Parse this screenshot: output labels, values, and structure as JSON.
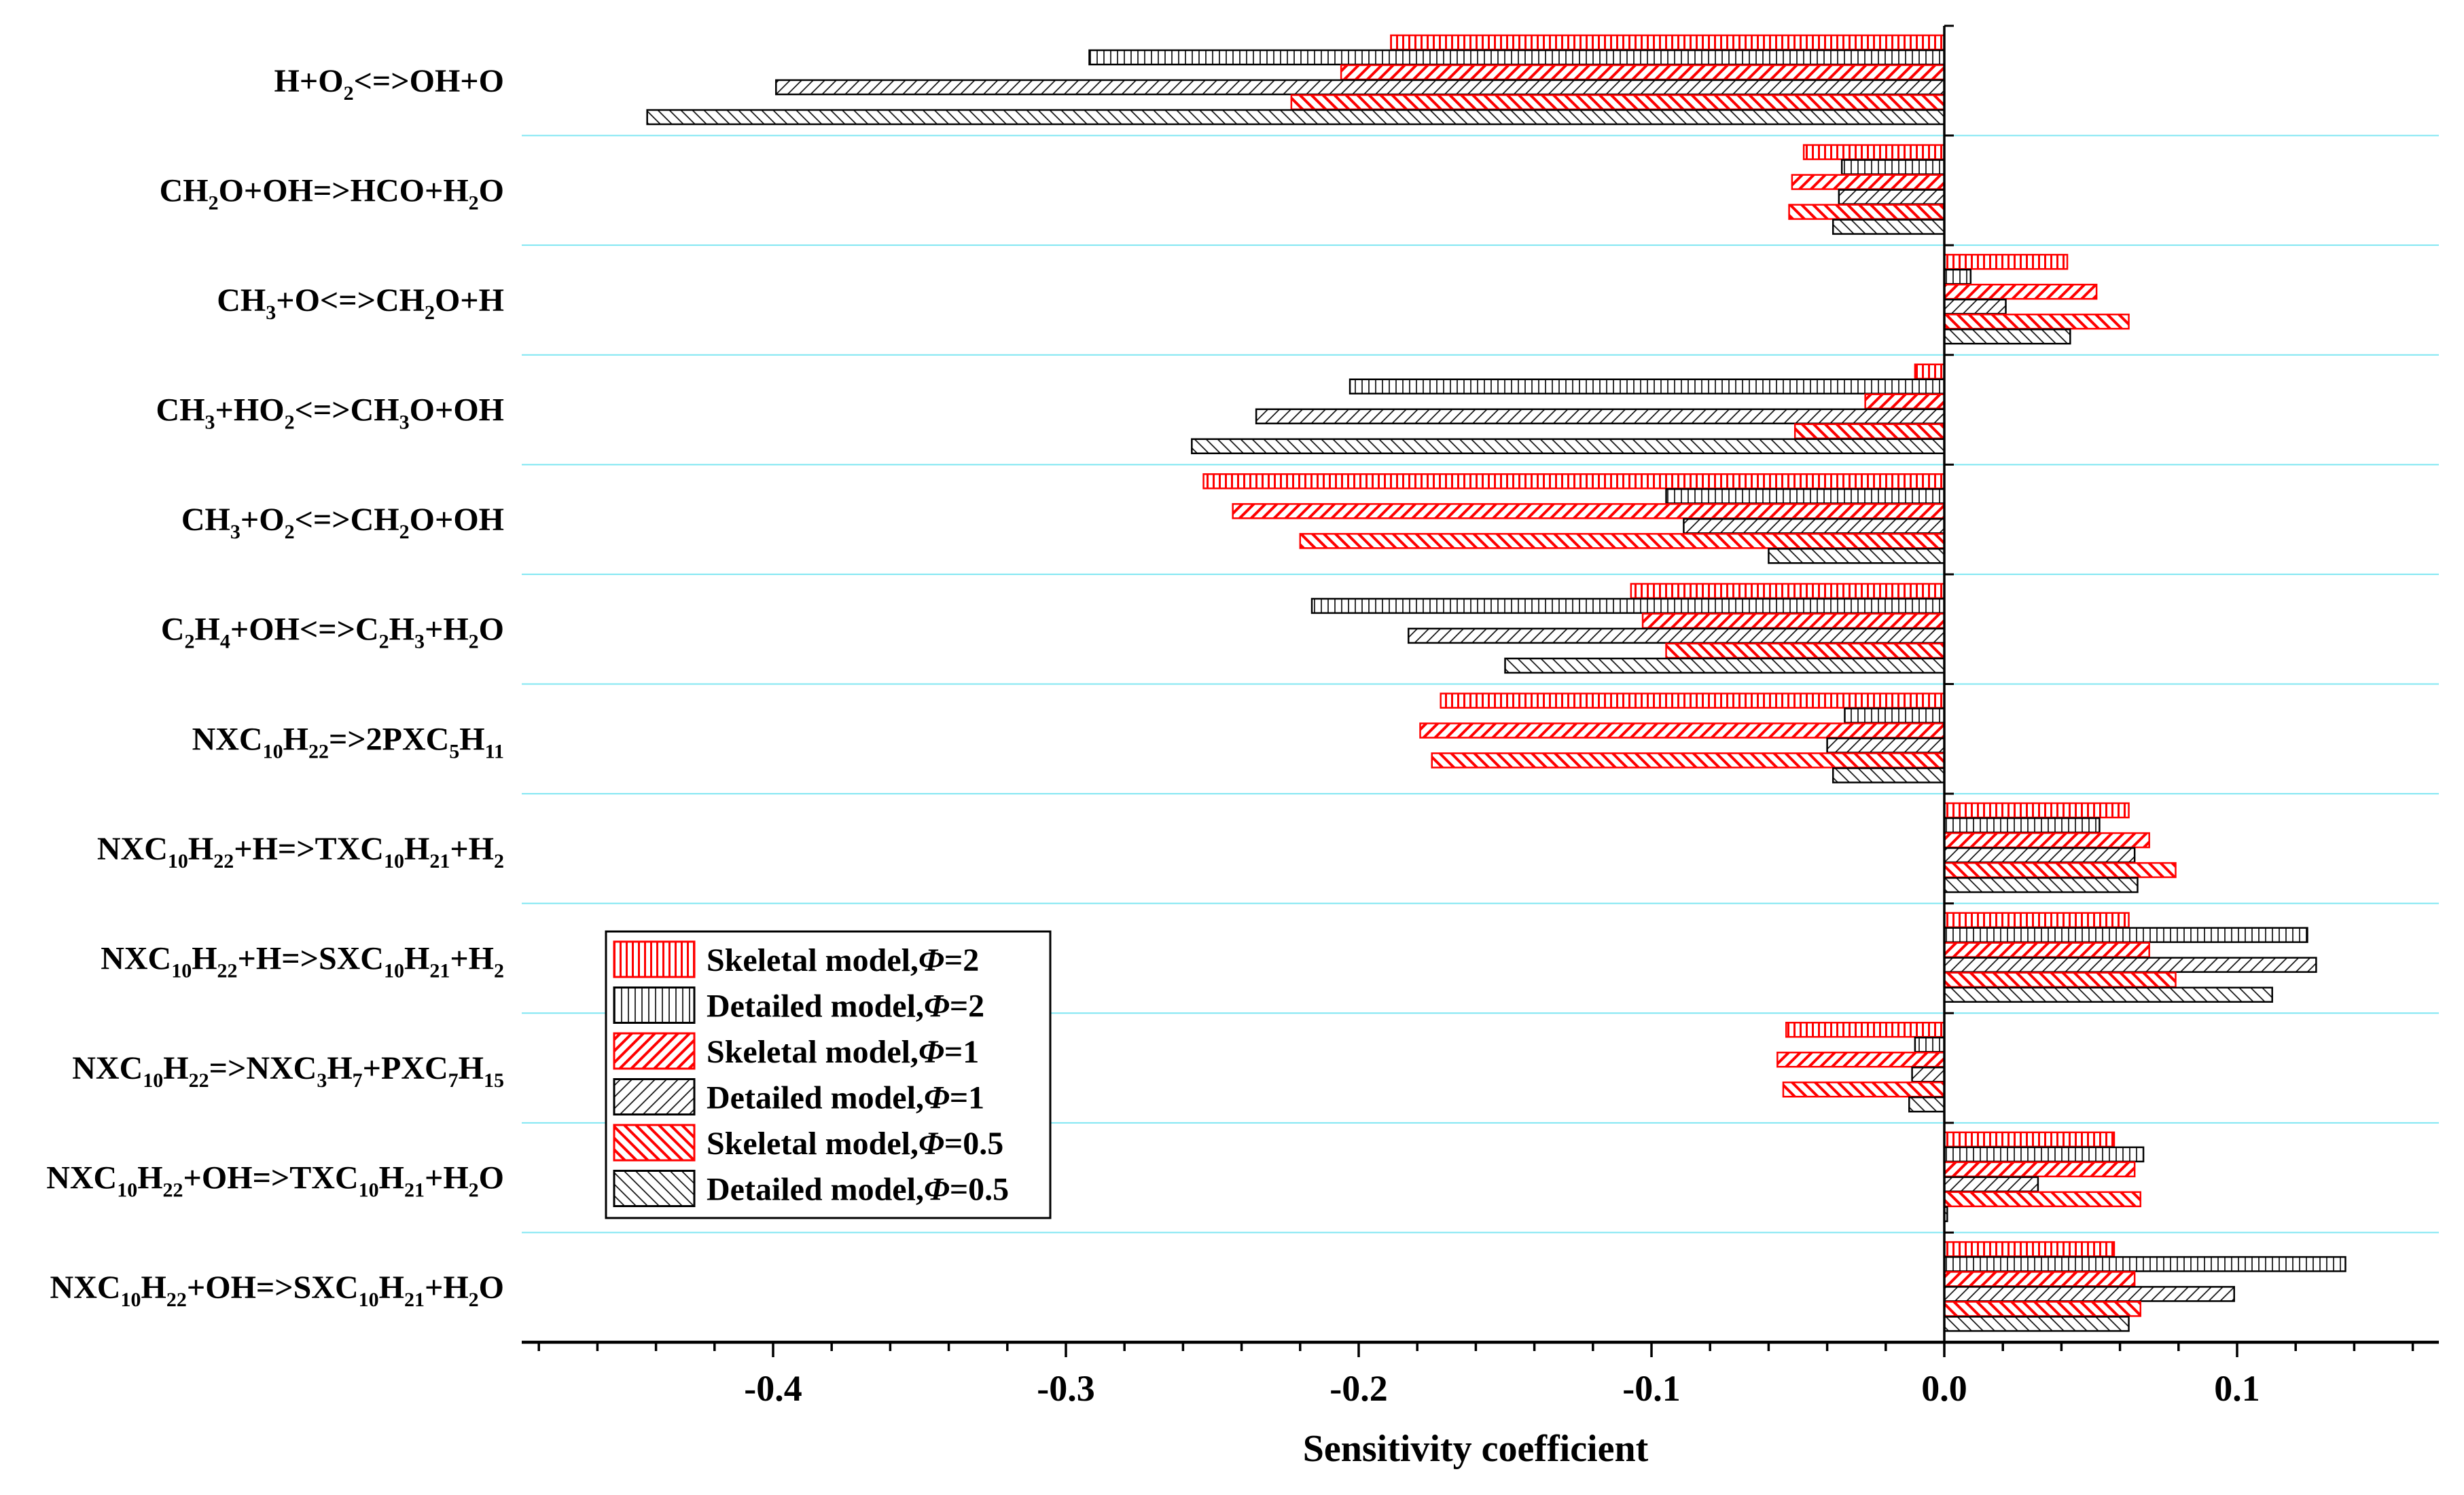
{
  "chart_data": {
    "type": "bar",
    "orientation": "horizontal",
    "xlabel": "Sensitivity coefficient",
    "ylabel": "",
    "xlim": [
      -0.49,
      0.17
    ],
    "xticks": [
      -0.4,
      -0.3,
      -0.2,
      -0.1,
      0.0,
      0.1
    ],
    "xtick_labels": [
      "-0.4",
      "-0.3",
      "-0.2",
      "-0.1",
      "0.0",
      "0.1"
    ],
    "grid": "horizontal separators between reactions",
    "legend_position": "lower-left",
    "categories": [
      [
        {
          "t": "H+O"
        },
        {
          "t": "2",
          "s": 1
        },
        {
          "t": "<=>OH+O"
        }
      ],
      [
        {
          "t": "CH"
        },
        {
          "t": "2",
          "s": 1
        },
        {
          "t": "O+OH=>HCO+H"
        },
        {
          "t": "2",
          "s": 1
        },
        {
          "t": "O"
        }
      ],
      [
        {
          "t": "CH"
        },
        {
          "t": "3",
          "s": 1
        },
        {
          "t": "+O<=>CH"
        },
        {
          "t": "2",
          "s": 1
        },
        {
          "t": "O+H"
        }
      ],
      [
        {
          "t": "CH"
        },
        {
          "t": "3",
          "s": 1
        },
        {
          "t": "+HO"
        },
        {
          "t": "2",
          "s": 1
        },
        {
          "t": "<=>CH"
        },
        {
          "t": "3",
          "s": 1
        },
        {
          "t": "O+OH"
        }
      ],
      [
        {
          "t": "CH"
        },
        {
          "t": "3",
          "s": 1
        },
        {
          "t": "+O"
        },
        {
          "t": "2",
          "s": 1
        },
        {
          "t": "<=>CH"
        },
        {
          "t": "2",
          "s": 1
        },
        {
          "t": "O+OH"
        }
      ],
      [
        {
          "t": "C"
        },
        {
          "t": "2",
          "s": 1
        },
        {
          "t": "H"
        },
        {
          "t": "4",
          "s": 1
        },
        {
          "t": "+OH<=>C"
        },
        {
          "t": "2",
          "s": 1
        },
        {
          "t": "H"
        },
        {
          "t": "3",
          "s": 1
        },
        {
          "t": "+H"
        },
        {
          "t": "2",
          "s": 1
        },
        {
          "t": "O"
        }
      ],
      [
        {
          "t": "NXC"
        },
        {
          "t": "10",
          "s": 1
        },
        {
          "t": "H"
        },
        {
          "t": "22",
          "s": 1
        },
        {
          "t": "=>2PXC"
        },
        {
          "t": "5",
          "s": 1
        },
        {
          "t": "H"
        },
        {
          "t": "11",
          "s": 1
        }
      ],
      [
        {
          "t": "NXC"
        },
        {
          "t": "10",
          "s": 1
        },
        {
          "t": "H"
        },
        {
          "t": "22",
          "s": 1
        },
        {
          "t": "+H=>TXC"
        },
        {
          "t": "10",
          "s": 1
        },
        {
          "t": "H"
        },
        {
          "t": "21",
          "s": 1
        },
        {
          "t": "+H"
        },
        {
          "t": "2",
          "s": 1
        }
      ],
      [
        {
          "t": "NXC"
        },
        {
          "t": "10",
          "s": 1
        },
        {
          "t": "H"
        },
        {
          "t": "22",
          "s": 1
        },
        {
          "t": "+H=>SXC"
        },
        {
          "t": "10",
          "s": 1
        },
        {
          "t": "H"
        },
        {
          "t": "21",
          "s": 1
        },
        {
          "t": "+H"
        },
        {
          "t": "2",
          "s": 1
        }
      ],
      [
        {
          "t": "NXC"
        },
        {
          "t": "10",
          "s": 1
        },
        {
          "t": "H"
        },
        {
          "t": "22",
          "s": 1
        },
        {
          "t": "=>NXC"
        },
        {
          "t": "3",
          "s": 1
        },
        {
          "t": "H"
        },
        {
          "t": "7",
          "s": 1
        },
        {
          "t": "+PXC"
        },
        {
          "t": "7",
          "s": 1
        },
        {
          "t": "H"
        },
        {
          "t": "15",
          "s": 1
        }
      ],
      [
        {
          "t": "NXC"
        },
        {
          "t": "10",
          "s": 1
        },
        {
          "t": "H"
        },
        {
          "t": "22",
          "s": 1
        },
        {
          "t": "+OH=>TXC"
        },
        {
          "t": "10",
          "s": 1
        },
        {
          "t": "H"
        },
        {
          "t": "21",
          "s": 1
        },
        {
          "t": "+H"
        },
        {
          "t": "2",
          "s": 1
        },
        {
          "t": "O"
        }
      ],
      [
        {
          "t": "NXC"
        },
        {
          "t": "10",
          "s": 1
        },
        {
          "t": "H"
        },
        {
          "t": "22",
          "s": 1
        },
        {
          "t": "+OH=>SXC"
        },
        {
          "t": "10",
          "s": 1
        },
        {
          "t": "H"
        },
        {
          "t": "21",
          "s": 1
        },
        {
          "t": "+H"
        },
        {
          "t": "2",
          "s": 1
        },
        {
          "t": "O"
        }
      ]
    ],
    "series": [
      {
        "name": "Skeletal model,",
        "phi": "Φ",
        "cond": "=2",
        "pattern": "vert",
        "color": "#ff0000",
        "values": [
          -0.189,
          -0.048,
          0.042,
          -0.01,
          -0.253,
          -0.107,
          -0.172,
          0.063,
          0.063,
          -0.054,
          0.058,
          0.058
        ]
      },
      {
        "name": "Detailed model,",
        "phi": "Φ",
        "cond": "=2",
        "pattern": "vert",
        "color": "#000000",
        "values": [
          -0.292,
          -0.035,
          0.009,
          -0.203,
          -0.095,
          -0.216,
          -0.034,
          0.053,
          0.124,
          -0.01,
          0.068,
          0.137
        ]
      },
      {
        "name": "Skeletal model,",
        "phi": "Φ",
        "cond": "=1",
        "pattern": "fdiag",
        "color": "#ff0000",
        "values": [
          -0.206,
          -0.052,
          0.052,
          -0.027,
          -0.243,
          -0.103,
          -0.179,
          0.07,
          0.07,
          -0.057,
          0.065,
          0.065
        ]
      },
      {
        "name": "Detailed model,",
        "phi": "Φ",
        "cond": "=1",
        "pattern": "fdiag",
        "color": "#000000",
        "values": [
          -0.399,
          -0.036,
          0.021,
          -0.235,
          -0.089,
          -0.183,
          -0.04,
          0.065,
          0.127,
          -0.011,
          0.032,
          0.099
        ]
      },
      {
        "name": "Skeletal model,",
        "phi": "Φ",
        "cond": "=0.5",
        "pattern": "bdiag",
        "color": "#ff0000",
        "values": [
          -0.223,
          -0.053,
          0.063,
          -0.051,
          -0.22,
          -0.095,
          -0.175,
          0.079,
          0.079,
          -0.055,
          0.067,
          0.067
        ]
      },
      {
        "name": "Detailed model,",
        "phi": "Φ",
        "cond": "=0.5",
        "pattern": "bdiag",
        "color": "#000000",
        "values": [
          -0.443,
          -0.038,
          0.043,
          -0.257,
          -0.06,
          -0.15,
          -0.038,
          0.066,
          0.112,
          -0.012,
          0.001,
          0.063
        ]
      }
    ]
  }
}
